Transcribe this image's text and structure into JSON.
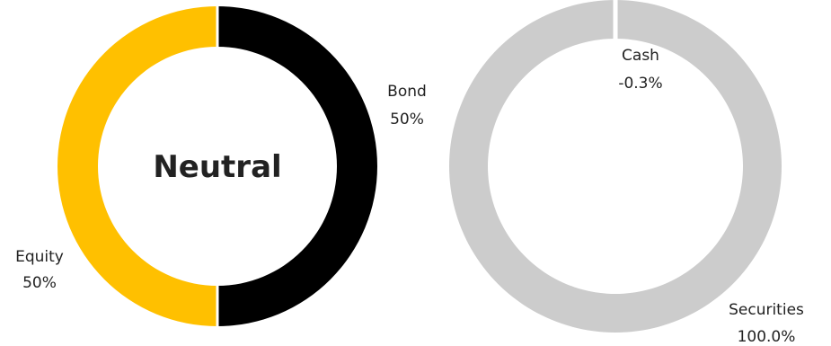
{
  "chart_data": [
    {
      "type": "pie",
      "style": "donut",
      "center_label": "Neutral",
      "slices": [
        {
          "name": "Bond",
          "value": 50,
          "label": "Bond",
          "value_label": "50%",
          "color": "#000000"
        },
        {
          "name": "Equity",
          "value": 50,
          "label": "Equity",
          "value_label": "50%",
          "color": "#FFC000"
        }
      ]
    },
    {
      "type": "pie",
      "style": "donut",
      "slices": [
        {
          "name": "Cash",
          "value": -0.3,
          "label": "Cash",
          "value_label": "-0.3%",
          "color": "#FFFFFF"
        },
        {
          "name": "Securities",
          "value": 100.0,
          "label": "Securities",
          "value_label": "100.0%",
          "color": "#CCCCCC"
        }
      ]
    }
  ]
}
